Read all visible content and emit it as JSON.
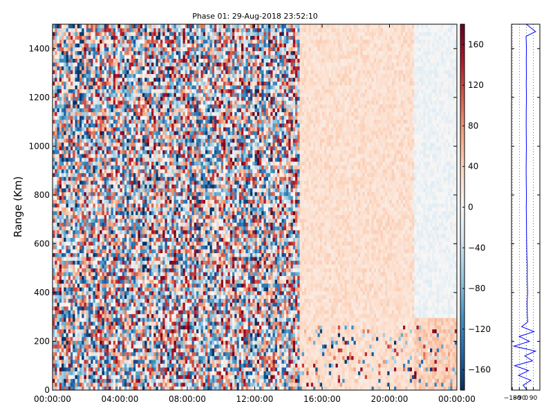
{
  "chart_data": [
    {
      "type": "heatmap",
      "title": "Phase 01: 29-Aug-2018 23:52:10",
      "xlabel": "",
      "ylabel": "Range (Km)",
      "x_ticks": [
        "00:00:00",
        "04:00:00",
        "08:00:00",
        "12:00:00",
        "16:00:00",
        "20:00:00",
        "00:00:00"
      ],
      "y_ticks": [
        "0",
        "200",
        "400",
        "600",
        "800",
        "1000",
        "1200",
        "1400"
      ],
      "xlim_hours": [
        0,
        24
      ],
      "ylim": [
        0,
        1500
      ],
      "colorscale": "RdBu_r",
      "clim": [
        -180,
        180
      ],
      "colorbar_ticks": [
        "160",
        "120",
        "80",
        "40",
        "0",
        "−40",
        "−80",
        "−120",
        "−160"
      ],
      "colorbar_values": [
        160,
        120,
        80,
        40,
        0,
        -40,
        -80,
        -120,
        -160
      ],
      "regions": [
        {
          "from_hour": 0,
          "to_hour": 14.6,
          "description": "noisy random phase, full range [-180,180]"
        },
        {
          "from_hour": 14.6,
          "to_hour": 24,
          "description": "smooth, mostly +20 to +60 at lower ranges, near 0 / slightly negative above 300 km after 21:30"
        }
      ],
      "noise_band_below_km": 260,
      "noise_band_from_hour": 14.6
    },
    {
      "type": "line",
      "xlabel": "",
      "ylabel": "",
      "x_ticks": [
        "−180",
        "−90",
        "0",
        "90"
      ],
      "x_values": [
        -180,
        -90,
        0,
        90
      ],
      "xlim": [
        -190,
        175
      ],
      "ylim": [
        0,
        1500
      ],
      "series": [
        {
          "color": "#0000ff",
          "range_km": [
            0,
            20,
            40,
            60,
            80,
            100,
            120,
            140,
            160,
            180,
            200,
            220,
            240,
            260,
            280,
            300,
            330,
            360,
            400,
            430,
            460,
            500,
            550,
            600,
            650,
            700,
            750,
            800,
            850,
            900,
            950,
            1000,
            1050,
            1100,
            1150,
            1200,
            1250,
            1300,
            1350,
            1400,
            1450,
            1470,
            1500
          ],
          "phase_deg": [
            10,
            -40,
            60,
            -100,
            30,
            -150,
            80,
            -20,
            120,
            -160,
            40,
            -90,
            100,
            -60,
            20,
            15,
            12,
            10,
            18,
            15,
            12,
            14,
            8,
            5,
            3,
            2,
            0,
            2,
            0,
            -2,
            0,
            1,
            0,
            -1,
            0,
            2,
            0,
            1,
            0,
            2,
            -3,
            120,
            0
          ]
        }
      ],
      "grid": "vertical dotted"
    }
  ],
  "colors": {
    "line": "#0000ff",
    "frame": "#000000",
    "grid": "#000000"
  }
}
